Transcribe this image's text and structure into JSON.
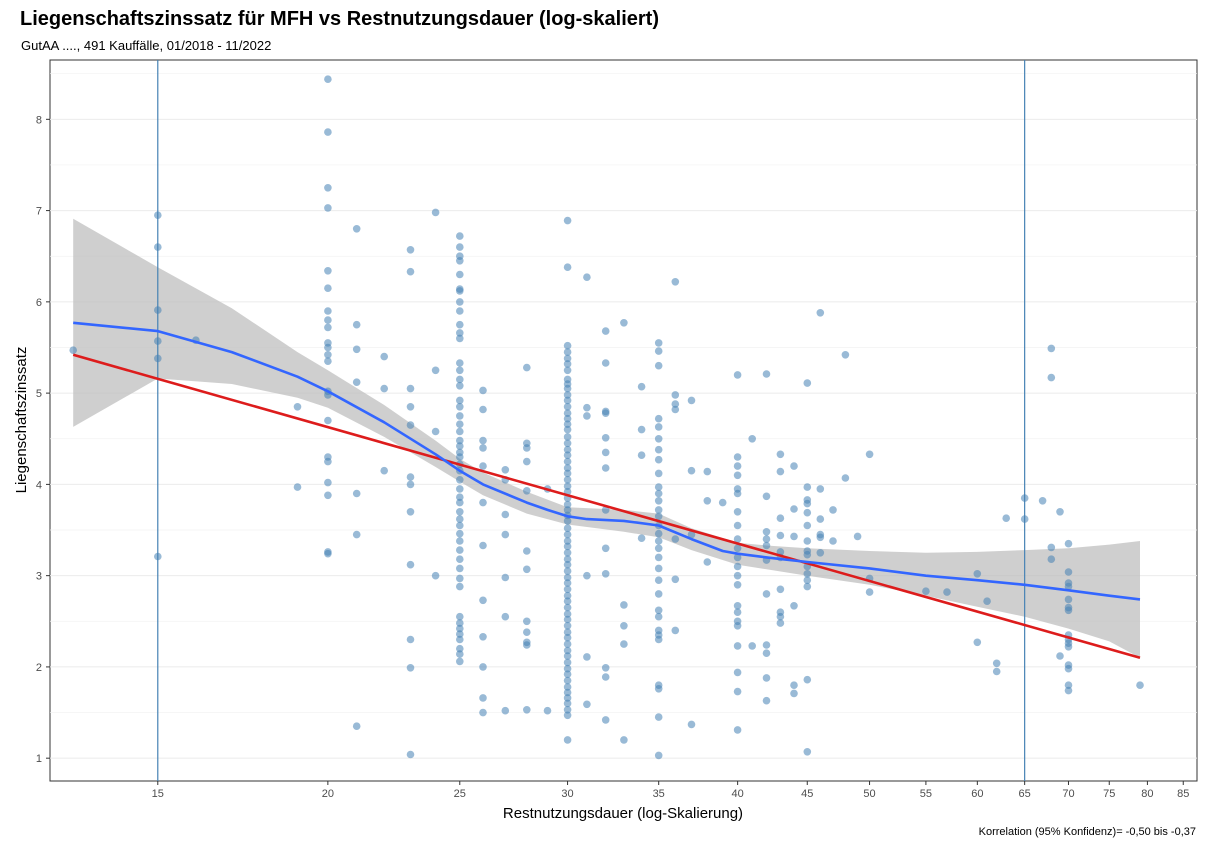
{
  "chart_data": {
    "type": "scatter",
    "title": "Liegenschaftszinssatz für MFH vs Restnutzungsdauer (log-skaliert)",
    "subtitle": "GutAA ...., 491 Kauffälle, 01/2018 - 11/2022",
    "xlabel": "Restnutzungsdauer (log-Skalierung)",
    "ylabel": "Liegenschaftszinssatz",
    "caption": "Korrelation (95% Konfidenz)= -0,50 bis -0,37",
    "x_scale": "log",
    "xlim": [
      12.5,
      87
    ],
    "ylim": [
      0.75,
      8.65
    ],
    "x_ticks": [
      15,
      20,
      25,
      30,
      35,
      40,
      45,
      50,
      55,
      60,
      65,
      70,
      75,
      80,
      85
    ],
    "y_ticks": [
      1,
      2,
      3,
      4,
      5,
      6,
      7,
      8
    ],
    "grid": true,
    "vlines": [
      15,
      65
    ],
    "colors": {
      "points": "#4682b4",
      "loess": "#3366ff",
      "linear": "#dd1c1c",
      "ribbon": "#bfbfbf",
      "vline": "#4682b4"
    },
    "points": [
      [
        13,
        5.47
      ],
      [
        15,
        6.95
      ],
      [
        15,
        6.6
      ],
      [
        15,
        5.91
      ],
      [
        15,
        5.57
      ],
      [
        15,
        5.38
      ],
      [
        15,
        3.21
      ],
      [
        16,
        5.58
      ],
      [
        19,
        4.85
      ],
      [
        19,
        3.97
      ],
      [
        20,
        8.44
      ],
      [
        20,
        7.86
      ],
      [
        20,
        7.25
      ],
      [
        20,
        7.03
      ],
      [
        20,
        6.34
      ],
      [
        20,
        6.15
      ],
      [
        20,
        5.9
      ],
      [
        20,
        5.8
      ],
      [
        20,
        5.72
      ],
      [
        20,
        5.55
      ],
      [
        20,
        5.5
      ],
      [
        20,
        5.42
      ],
      [
        20,
        5.35
      ],
      [
        20,
        5.02
      ],
      [
        20,
        4.98
      ],
      [
        20,
        4.7
      ],
      [
        20,
        4.3
      ],
      [
        20,
        4.25
      ],
      [
        20,
        4.02
      ],
      [
        20,
        3.88
      ],
      [
        20,
        3.26
      ],
      [
        20,
        3.24
      ],
      [
        21,
        6.8
      ],
      [
        21,
        5.75
      ],
      [
        21,
        5.48
      ],
      [
        21,
        5.12
      ],
      [
        21,
        3.9
      ],
      [
        21,
        3.45
      ],
      [
        21,
        1.35
      ],
      [
        22,
        5.4
      ],
      [
        22,
        5.05
      ],
      [
        22,
        4.15
      ],
      [
        23,
        6.57
      ],
      [
        23,
        6.33
      ],
      [
        23,
        5.05
      ],
      [
        23,
        4.85
      ],
      [
        23,
        4.65
      ],
      [
        23,
        4.08
      ],
      [
        23,
        4.0
      ],
      [
        23,
        3.7
      ],
      [
        23,
        3.12
      ],
      [
        23,
        2.3
      ],
      [
        23,
        1.99
      ],
      [
        23,
        1.04
      ],
      [
        24,
        6.98
      ],
      [
        24,
        5.25
      ],
      [
        24,
        4.58
      ],
      [
        24,
        3.0
      ],
      [
        25,
        6.72
      ],
      [
        25,
        6.6
      ],
      [
        25,
        6.5
      ],
      [
        25,
        6.45
      ],
      [
        25,
        6.3
      ],
      [
        25,
        6.14
      ],
      [
        25,
        6.12
      ],
      [
        25,
        6.0
      ],
      [
        25,
        5.9
      ],
      [
        25,
        5.75
      ],
      [
        25,
        5.66
      ],
      [
        25,
        5.6
      ],
      [
        25,
        5.33
      ],
      [
        25,
        5.25
      ],
      [
        25,
        5.15
      ],
      [
        25,
        5.08
      ],
      [
        25,
        4.92
      ],
      [
        25,
        4.85
      ],
      [
        25,
        4.75
      ],
      [
        25,
        4.66
      ],
      [
        25,
        4.58
      ],
      [
        25,
        4.48
      ],
      [
        25,
        4.42
      ],
      [
        25,
        4.35
      ],
      [
        25,
        4.3
      ],
      [
        25,
        4.22
      ],
      [
        25,
        4.15
      ],
      [
        25,
        4.05
      ],
      [
        25,
        3.95
      ],
      [
        25,
        3.86
      ],
      [
        25,
        3.8
      ],
      [
        25,
        3.7
      ],
      [
        25,
        3.62
      ],
      [
        25,
        3.55
      ],
      [
        25,
        3.46
      ],
      [
        25,
        3.38
      ],
      [
        25,
        3.28
      ],
      [
        25,
        3.18
      ],
      [
        25,
        3.08
      ],
      [
        25,
        2.97
      ],
      [
        25,
        2.88
      ],
      [
        25,
        2.55
      ],
      [
        25,
        2.48
      ],
      [
        25,
        2.42
      ],
      [
        25,
        2.36
      ],
      [
        25,
        2.3
      ],
      [
        25,
        2.2
      ],
      [
        25,
        2.14
      ],
      [
        25,
        2.06
      ],
      [
        26,
        5.03
      ],
      [
        26,
        4.82
      ],
      [
        26,
        4.48
      ],
      [
        26,
        4.4
      ],
      [
        26,
        4.2
      ],
      [
        26,
        3.8
      ],
      [
        26,
        3.33
      ],
      [
        26,
        2.73
      ],
      [
        26,
        2.33
      ],
      [
        26,
        2.0
      ],
      [
        26,
        1.66
      ],
      [
        26,
        1.5
      ],
      [
        27,
        4.16
      ],
      [
        27,
        4.05
      ],
      [
        27,
        3.67
      ],
      [
        27,
        3.45
      ],
      [
        27,
        2.98
      ],
      [
        27,
        2.55
      ],
      [
        27,
        1.52
      ],
      [
        28,
        5.28
      ],
      [
        28,
        4.45
      ],
      [
        28,
        4.4
      ],
      [
        28,
        4.25
      ],
      [
        28,
        3.93
      ],
      [
        28,
        3.27
      ],
      [
        28,
        3.07
      ],
      [
        28,
        2.5
      ],
      [
        28,
        2.38
      ],
      [
        28,
        2.27
      ],
      [
        28,
        2.24
      ],
      [
        28,
        1.53
      ],
      [
        29,
        3.95
      ],
      [
        29,
        1.52
      ],
      [
        30,
        6.89
      ],
      [
        30,
        6.38
      ],
      [
        30,
        5.52
      ],
      [
        30,
        5.45
      ],
      [
        30,
        5.38
      ],
      [
        30,
        5.32
      ],
      [
        30,
        5.25
      ],
      [
        30,
        5.15
      ],
      [
        30,
        5.1
      ],
      [
        30,
        5.05
      ],
      [
        30,
        4.98
      ],
      [
        30,
        4.92
      ],
      [
        30,
        4.85
      ],
      [
        30,
        4.78
      ],
      [
        30,
        4.72
      ],
      [
        30,
        4.66
      ],
      [
        30,
        4.6
      ],
      [
        30,
        4.52
      ],
      [
        30,
        4.45
      ],
      [
        30,
        4.38
      ],
      [
        30,
        4.32
      ],
      [
        30,
        4.25
      ],
      [
        30,
        4.18
      ],
      [
        30,
        4.12
      ],
      [
        30,
        4.05
      ],
      [
        30,
        3.98
      ],
      [
        30,
        3.92
      ],
      [
        30,
        3.85
      ],
      [
        30,
        3.78
      ],
      [
        30,
        3.72
      ],
      [
        30,
        3.66
      ],
      [
        30,
        3.6
      ],
      [
        30,
        3.52
      ],
      [
        30,
        3.45
      ],
      [
        30,
        3.38
      ],
      [
        30,
        3.32
      ],
      [
        30,
        3.25
      ],
      [
        30,
        3.18
      ],
      [
        30,
        3.12
      ],
      [
        30,
        3.05
      ],
      [
        30,
        2.98
      ],
      [
        30,
        2.92
      ],
      [
        30,
        2.85
      ],
      [
        30,
        2.78
      ],
      [
        30,
        2.72
      ],
      [
        30,
        2.65
      ],
      [
        30,
        2.58
      ],
      [
        30,
        2.52
      ],
      [
        30,
        2.45
      ],
      [
        30,
        2.38
      ],
      [
        30,
        2.32
      ],
      [
        30,
        2.25
      ],
      [
        30,
        2.18
      ],
      [
        30,
        2.12
      ],
      [
        30,
        2.05
      ],
      [
        30,
        1.98
      ],
      [
        30,
        1.92
      ],
      [
        30,
        1.85
      ],
      [
        30,
        1.78
      ],
      [
        30,
        1.72
      ],
      [
        30,
        1.66
      ],
      [
        30,
        1.6
      ],
      [
        30,
        1.53
      ],
      [
        30,
        1.47
      ],
      [
        30,
        1.2
      ],
      [
        31,
        6.27
      ],
      [
        31,
        4.84
      ],
      [
        31,
        4.75
      ],
      [
        31,
        3.0
      ],
      [
        31,
        2.11
      ],
      [
        31,
        1.59
      ],
      [
        32,
        5.68
      ],
      [
        32,
        5.33
      ],
      [
        32,
        4.8
      ],
      [
        32,
        4.78
      ],
      [
        32,
        4.51
      ],
      [
        32,
        4.35
      ],
      [
        32,
        4.18
      ],
      [
        32,
        3.72
      ],
      [
        32,
        3.3
      ],
      [
        32,
        3.02
      ],
      [
        32,
        1.99
      ],
      [
        32,
        1.89
      ],
      [
        32,
        1.42
      ],
      [
        33,
        5.77
      ],
      [
        33,
        2.68
      ],
      [
        33,
        2.45
      ],
      [
        33,
        2.25
      ],
      [
        33,
        1.2
      ],
      [
        34,
        5.07
      ],
      [
        34,
        4.6
      ],
      [
        34,
        4.32
      ],
      [
        34,
        3.41
      ],
      [
        35,
        5.55
      ],
      [
        35,
        5.46
      ],
      [
        35,
        5.3
      ],
      [
        35,
        4.72
      ],
      [
        35,
        4.63
      ],
      [
        35,
        4.5
      ],
      [
        35,
        4.38
      ],
      [
        35,
        4.27
      ],
      [
        35,
        4.12
      ],
      [
        35,
        3.97
      ],
      [
        35,
        3.9
      ],
      [
        35,
        3.82
      ],
      [
        35,
        3.72
      ],
      [
        35,
        3.65
      ],
      [
        35,
        3.55
      ],
      [
        35,
        3.46
      ],
      [
        35,
        3.38
      ],
      [
        35,
        3.3
      ],
      [
        35,
        3.2
      ],
      [
        35,
        3.08
      ],
      [
        35,
        2.95
      ],
      [
        35,
        2.8
      ],
      [
        35,
        2.62
      ],
      [
        35,
        2.55
      ],
      [
        35,
        2.4
      ],
      [
        35,
        2.35
      ],
      [
        35,
        2.3
      ],
      [
        35,
        1.8
      ],
      [
        35,
        1.76
      ],
      [
        35,
        1.45
      ],
      [
        35,
        1.03
      ],
      [
        36,
        6.22
      ],
      [
        36,
        4.98
      ],
      [
        36,
        4.88
      ],
      [
        36,
        4.82
      ],
      [
        36,
        3.4
      ],
      [
        36,
        2.96
      ],
      [
        36,
        2.4
      ],
      [
        37,
        4.92
      ],
      [
        37,
        4.15
      ],
      [
        37,
        3.45
      ],
      [
        37,
        1.37
      ],
      [
        38,
        4.14
      ],
      [
        38,
        3.82
      ],
      [
        38,
        3.15
      ],
      [
        39,
        3.8
      ],
      [
        40,
        5.2
      ],
      [
        40,
        4.3
      ],
      [
        40,
        4.2
      ],
      [
        40,
        4.1
      ],
      [
        40,
        3.95
      ],
      [
        40,
        3.9
      ],
      [
        40,
        3.7
      ],
      [
        40,
        3.55
      ],
      [
        40,
        3.4
      ],
      [
        40,
        3.3
      ],
      [
        40,
        3.2
      ],
      [
        40,
        3.1
      ],
      [
        40,
        3.0
      ],
      [
        40,
        2.9
      ],
      [
        40,
        2.67
      ],
      [
        40,
        2.6
      ],
      [
        40,
        2.5
      ],
      [
        40,
        2.45
      ],
      [
        40,
        2.23
      ],
      [
        40,
        1.94
      ],
      [
        40,
        1.73
      ],
      [
        40,
        1.31
      ],
      [
        41,
        4.5
      ],
      [
        41,
        2.23
      ],
      [
        42,
        5.21
      ],
      [
        42,
        3.87
      ],
      [
        42,
        3.48
      ],
      [
        42,
        3.4
      ],
      [
        42,
        3.33
      ],
      [
        42,
        3.17
      ],
      [
        42,
        2.8
      ],
      [
        42,
        2.24
      ],
      [
        42,
        2.15
      ],
      [
        42,
        1.88
      ],
      [
        42,
        1.63
      ],
      [
        43,
        4.33
      ],
      [
        43,
        4.14
      ],
      [
        43,
        3.63
      ],
      [
        43,
        3.44
      ],
      [
        43,
        3.26
      ],
      [
        43,
        3.2
      ],
      [
        43,
        2.85
      ],
      [
        43,
        2.6
      ],
      [
        43,
        2.55
      ],
      [
        43,
        2.48
      ],
      [
        44,
        4.2
      ],
      [
        44,
        3.73
      ],
      [
        44,
        3.43
      ],
      [
        44,
        2.67
      ],
      [
        44,
        1.8
      ],
      [
        44,
        1.71
      ],
      [
        45,
        5.11
      ],
      [
        45,
        3.97
      ],
      [
        45,
        3.83
      ],
      [
        45,
        3.79
      ],
      [
        45,
        3.69
      ],
      [
        45,
        3.55
      ],
      [
        45,
        3.38
      ],
      [
        45,
        3.27
      ],
      [
        45,
        3.23
      ],
      [
        45,
        3.1
      ],
      [
        45,
        3.02
      ],
      [
        45,
        2.95
      ],
      [
        45,
        2.88
      ],
      [
        45,
        1.86
      ],
      [
        45,
        1.07
      ],
      [
        46,
        5.88
      ],
      [
        46,
        3.95
      ],
      [
        46,
        3.62
      ],
      [
        46,
        3.45
      ],
      [
        46,
        3.42
      ],
      [
        46,
        3.25
      ],
      [
        47,
        3.72
      ],
      [
        47,
        3.38
      ],
      [
        48,
        5.42
      ],
      [
        48,
        4.07
      ],
      [
        49,
        3.43
      ],
      [
        50,
        4.33
      ],
      [
        50,
        2.97
      ],
      [
        50,
        2.82
      ],
      [
        55,
        2.83
      ],
      [
        57,
        2.82
      ],
      [
        60,
        3.02
      ],
      [
        60,
        2.27
      ],
      [
        61,
        2.72
      ],
      [
        62,
        2.04
      ],
      [
        62,
        1.95
      ],
      [
        63,
        3.63
      ],
      [
        65,
        3.85
      ],
      [
        65,
        3.62
      ],
      [
        67,
        3.82
      ],
      [
        68,
        5.49
      ],
      [
        68,
        5.17
      ],
      [
        68,
        3.31
      ],
      [
        68,
        3.18
      ],
      [
        69,
        3.7
      ],
      [
        69,
        2.12
      ],
      [
        70,
        3.35
      ],
      [
        70,
        3.04
      ],
      [
        70,
        2.92
      ],
      [
        70,
        2.88
      ],
      [
        70,
        2.74
      ],
      [
        70,
        2.65
      ],
      [
        70,
        2.62
      ],
      [
        70,
        2.35
      ],
      [
        70,
        2.3
      ],
      [
        70,
        2.26
      ],
      [
        70,
        2.22
      ],
      [
        70,
        2.02
      ],
      [
        70,
        1.98
      ],
      [
        70,
        1.8
      ],
      [
        70,
        1.74
      ],
      [
        79,
        1.8
      ]
    ],
    "loess": [
      [
        13,
        5.77
      ],
      [
        15,
        5.68
      ],
      [
        17,
        5.45
      ],
      [
        19,
        5.18
      ],
      [
        20,
        5.02
      ],
      [
        22,
        4.68
      ],
      [
        24,
        4.33
      ],
      [
        25,
        4.15
      ],
      [
        26,
        4.0
      ],
      [
        28,
        3.8
      ],
      [
        29,
        3.72
      ],
      [
        30,
        3.65
      ],
      [
        31,
        3.62
      ],
      [
        33,
        3.6
      ],
      [
        35,
        3.55
      ],
      [
        37,
        3.4
      ],
      [
        39,
        3.27
      ],
      [
        40,
        3.24
      ],
      [
        42,
        3.2
      ],
      [
        45,
        3.15
      ],
      [
        50,
        3.08
      ],
      [
        55,
        3.0
      ],
      [
        60,
        2.95
      ],
      [
        65,
        2.9
      ],
      [
        70,
        2.84
      ],
      [
        75,
        2.78
      ],
      [
        79,
        2.74
      ]
    ],
    "loess_band": [
      [
        13,
        4.63,
        6.91
      ],
      [
        15,
        5.16,
        6.38
      ],
      [
        17,
        5.1,
        5.93
      ],
      [
        19,
        4.95,
        5.45
      ],
      [
        20,
        4.84,
        5.25
      ],
      [
        22,
        4.52,
        4.87
      ],
      [
        24,
        4.19,
        4.48
      ],
      [
        25,
        4.03,
        4.28
      ],
      [
        26,
        3.88,
        4.13
      ],
      [
        28,
        3.68,
        3.92
      ],
      [
        30,
        3.56,
        3.75
      ],
      [
        33,
        3.48,
        3.72
      ],
      [
        35,
        3.42,
        3.68
      ],
      [
        37,
        3.28,
        3.52
      ],
      [
        40,
        3.12,
        3.36
      ],
      [
        42,
        3.07,
        3.33
      ],
      [
        45,
        3.0,
        3.3
      ],
      [
        50,
        2.9,
        3.27
      ],
      [
        55,
        2.78,
        3.25
      ],
      [
        60,
        2.66,
        3.26
      ],
      [
        65,
        2.55,
        3.28
      ],
      [
        70,
        2.42,
        3.3
      ],
      [
        75,
        2.28,
        3.34
      ],
      [
        79,
        2.1,
        3.38
      ]
    ],
    "linear_fit": [
      [
        13,
        5.42
      ],
      [
        79,
        2.1
      ]
    ]
  }
}
